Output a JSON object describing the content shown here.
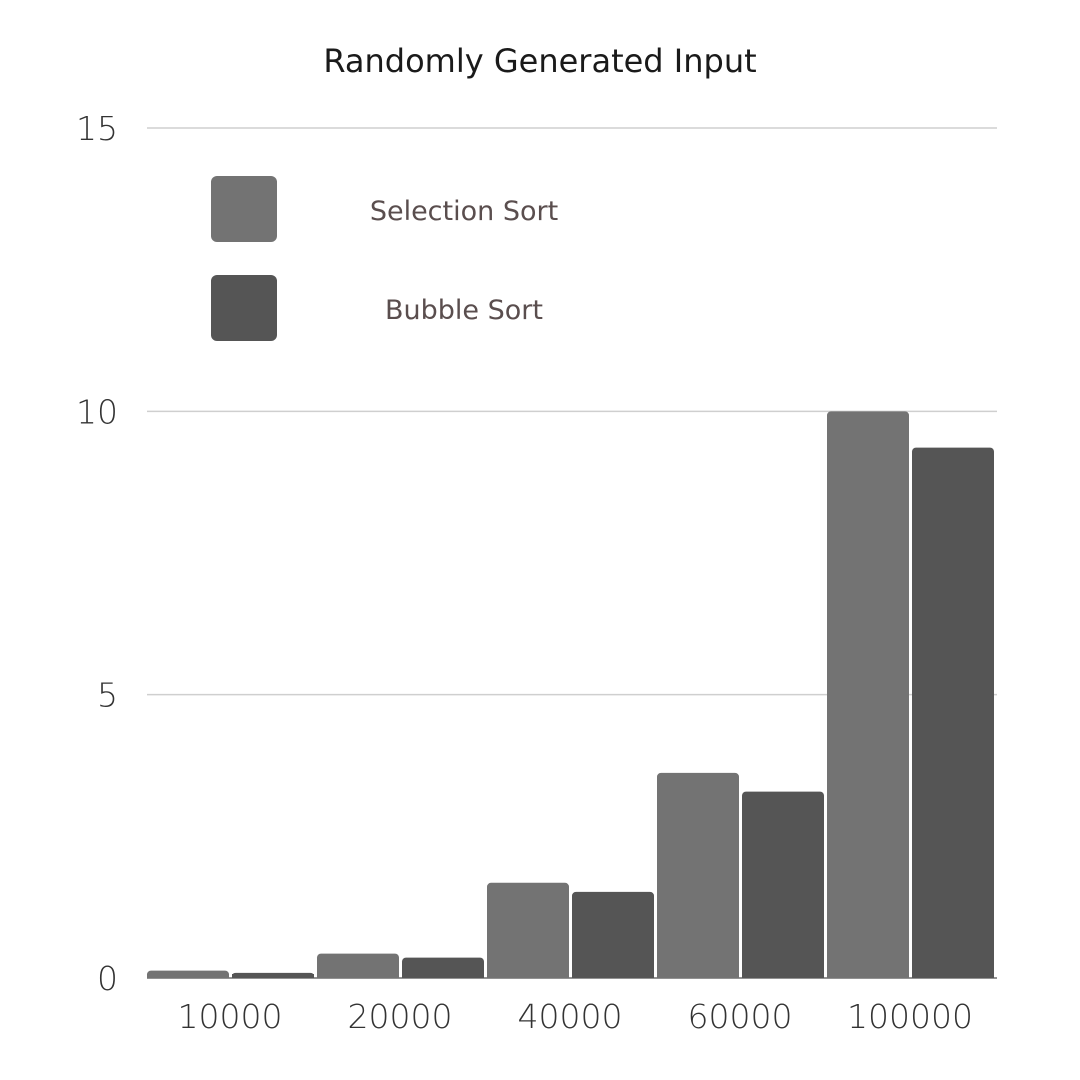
{
  "chart_data": {
    "type": "bar",
    "title": "Randomly Generated Input",
    "xlabel": "",
    "ylabel": "",
    "categories": [
      "10000",
      "20000",
      "40000",
      "60000",
      "100000"
    ],
    "series": [
      {
        "name": "Selection Sort",
        "color": "#737373",
        "values": [
          0.13,
          0.43,
          1.68,
          3.62,
          10.0
        ]
      },
      {
        "name": "Bubble Sort",
        "color": "#555555",
        "values": [
          0.09,
          0.36,
          1.52,
          3.29,
          9.36
        ]
      }
    ],
    "ylim": [
      0,
      15
    ],
    "yticks": [
      0,
      5,
      10,
      15
    ],
    "grid": true,
    "legend_position": "top-left"
  }
}
